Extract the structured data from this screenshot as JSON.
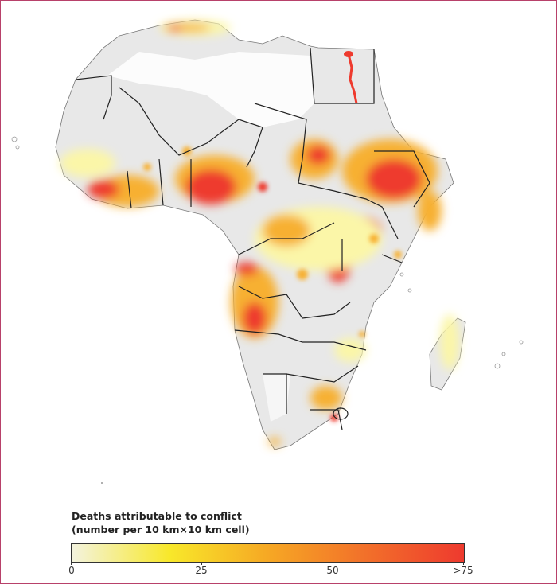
{
  "legend": {
    "title": "Deaths attributable to conflict",
    "subtitle": "(number per 10 km×10 km cell)",
    "ticks": [
      "0",
      "25",
      "50",
      ">75"
    ],
    "colors": [
      "#f3f3df",
      "#f8e82a",
      "#f6a824",
      "#f2702a",
      "#ee3a2e"
    ]
  },
  "map": {
    "land_color": "#e8e8e8",
    "border_color": "#222222",
    "hotspot_colors": {
      "low": "#fbf6a8",
      "mid": "#f7b030",
      "high": "#ee3a2e"
    }
  }
}
